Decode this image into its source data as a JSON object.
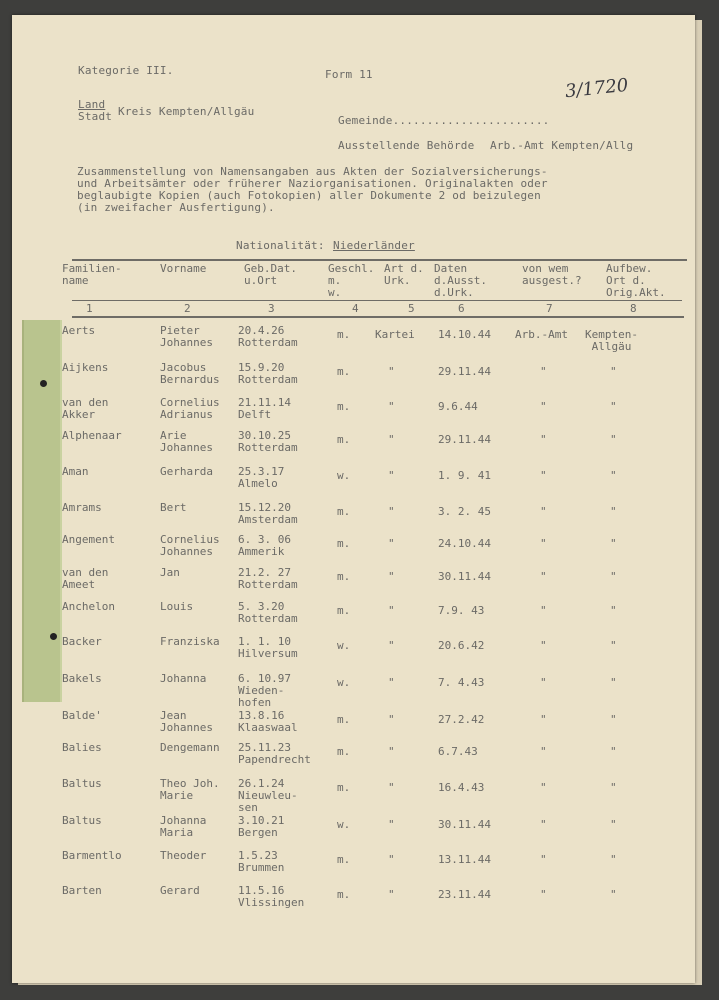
{
  "header": {
    "kategorie": "Kategorie III.",
    "form": "Form 11",
    "archive_number": "3/1720",
    "land_label": "Land",
    "stadt_label": "Stadt",
    "kreis": "Kreis Kempten/Allgäu",
    "gemeinde_label": "Gemeinde.......................",
    "behoerde_label": "Ausstellende Behörde",
    "behoerde_value": "Arb.-Amt Kempten/Allg",
    "intro": "Zusammenstellung von Namensangaben aus Akten der Sozialversicherungs-\nund Arbeitsämter oder früherer Naziorganisationen. Originalakten oder\nbeglaubigte Kopien (auch Fotokopien) aller Dokumente 2 od beizulegen\n(in zweifacher Ausfertigung).",
    "nationality_label": "Nationalität:",
    "nationality_value": "Niederländer"
  },
  "table": {
    "columns": [
      {
        "label": "Familien-\nname",
        "num": "1"
      },
      {
        "label": "Vorname",
        "num": "2"
      },
      {
        "label": "Geb.Dat.\nu.Ort",
        "num": "3"
      },
      {
        "label": "Geschl.\nm.\nw.",
        "num": "4"
      },
      {
        "label": "Art d.\nUrk.",
        "num": "5"
      },
      {
        "label": "Daten\nd.Ausst.\nd.Urk.",
        "num": "6"
      },
      {
        "label": "von wem\nausgest.?",
        "num": "7"
      },
      {
        "label": "Aufbew.\nOrt d.\nOrig.Akt.",
        "num": "8"
      }
    ],
    "rows": [
      [
        "Aerts",
        "Pieter\nJohannes",
        "20.4.26\nRotterdam",
        "m.",
        "Kartei",
        "14.10.44",
        "Arb.-Amt",
        "Kempten-\n Allgäu"
      ],
      [
        "Aijkens",
        "Jacobus\nBernardus",
        "15.9.20\nRotterdam",
        "m.",
        "\"",
        "29.11.44",
        "\"",
        "\""
      ],
      [
        "van den\nAkker",
        "Cornelius\nAdrianus",
        "21.11.14\nDelft",
        "m.",
        "\"",
        "9.6.44",
        "\"",
        "\""
      ],
      [
        "Alphenaar",
        "Arie\nJohannes",
        "30.10.25\nRotterdam",
        "m.",
        "\"",
        "29.11.44",
        "\"",
        "\""
      ],
      [
        "Aman",
        "Gerharda",
        "25.3.17\nAlmelo",
        "w.",
        "\"",
        "1. 9. 41",
        "\"",
        "\""
      ],
      [
        "Amrams",
        "Bert",
        "15.12.20\nAmsterdam",
        "m.",
        "\"",
        "3. 2. 45",
        "\"",
        "\""
      ],
      [
        "Angement",
        "Cornelius\nJohannes",
        "6. 3. 06\nAmmerik",
        "m.",
        "\"",
        "24.10.44",
        "\"",
        "\""
      ],
      [
        "van den\nAmeet",
        "Jan",
        "21.2. 27\nRotterdam",
        "m.",
        "\"",
        "30.11.44",
        "\"",
        "\""
      ],
      [
        "Anchelon",
        "Louis",
        "5. 3.20\nRotterdam",
        "m.",
        "\"",
        "7.9. 43",
        "\"",
        "\""
      ],
      [
        "Backer",
        "Franziska",
        "1. 1. 10\nHilversum",
        "w.",
        "\"",
        "20.6.42",
        "\"",
        "\""
      ],
      [
        "Bakels",
        "Johanna",
        "6. 10.97\nWieden-\nhofen",
        "w.",
        "\"",
        "7. 4.43",
        "\"",
        "\""
      ],
      [
        "Balde'",
        "Jean\nJohannes",
        "13.8.16\nKlaaswaal",
        "m.",
        "\"",
        "27.2.42",
        "\"",
        "\""
      ],
      [
        "Balies",
        "Dengemann",
        "25.11.23\nPapendrecht",
        "m.",
        "\"",
        "6.7.43",
        "\"",
        "\""
      ],
      [
        "Baltus",
        "Theo Joh.\nMarie",
        "26.1.24\nNieuwleu-\nsen",
        "m.",
        "\"",
        "16.4.43",
        "\"",
        "\""
      ],
      [
        "Baltus",
        "Johanna\nMaria",
        "3.10.21\nBergen",
        "w.",
        "\"",
        "30.11.44",
        "\"",
        "\""
      ],
      [
        "Barmentlo",
        "Theoder",
        "1.5.23\nBrummen",
        "m.",
        "\"",
        "13.11.44",
        "\"",
        "\""
      ],
      [
        "Barten",
        "Gerard",
        "11.5.16\nVlissingen",
        "m.",
        "\"",
        "23.11.44",
        "\"",
        "\""
      ]
    ]
  }
}
